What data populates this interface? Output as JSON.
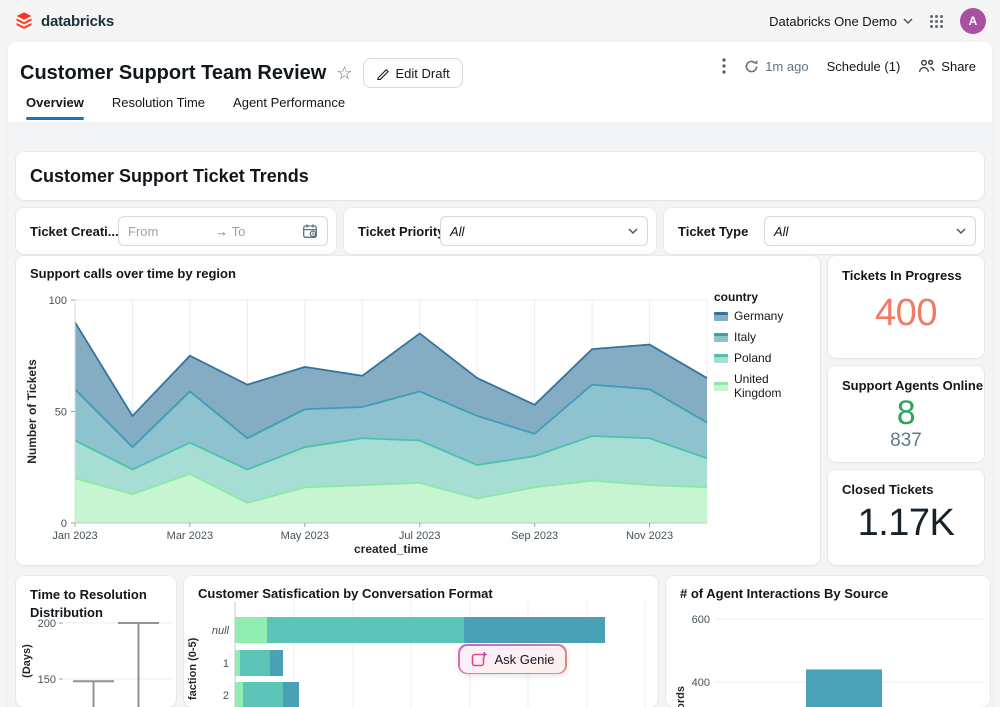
{
  "navbar": {
    "brand": "databricks",
    "workspace": "Databricks One Demo",
    "avatar": "A"
  },
  "header": {
    "title": "Customer Support Team Review",
    "edit": "Edit Draft",
    "refreshed": "1m ago",
    "schedule": "Schedule (1)",
    "share": "Share"
  },
  "tabs": [
    "Overview",
    "Resolution Time",
    "Agent Performance"
  ],
  "section_title": "Customer Support Ticket Trends",
  "filters": {
    "date_label": "Ticket Creati...",
    "from_placeholder": "From",
    "to_placeholder": "To",
    "priority_label": "Ticket Priority",
    "priority_value": "All",
    "type_label": "Ticket Type",
    "type_value": "All"
  },
  "kpis": [
    {
      "title": "Tickets In Progress",
      "value": "400",
      "value_color": "#EC7E63"
    },
    {
      "title": "Support Agents Online",
      "value": "8",
      "value_color": "#2FA45B",
      "secondary": "837",
      "secondary_color": "#5E7D8C"
    },
    {
      "title": "Closed Tickets",
      "value": "1.17K",
      "value_color": "#15222B"
    }
  ],
  "genie": {
    "label": "Ask Genie"
  },
  "accent_color": "#2272B4",
  "chart_data": [
    {
      "id": "support_calls",
      "type": "area",
      "title": "Support calls over time by region",
      "xlabel": "created_time",
      "ylabel": "Number of Tickets",
      "ylim": [
        0,
        100
      ],
      "yticks": [
        0,
        50,
        100
      ],
      "grid": true,
      "legend_title": "country",
      "legend_position": "right",
      "x": [
        "Jan 2023",
        "Feb 2023",
        "Mar 2023",
        "Apr 2023",
        "May 2023",
        "Jun 2023",
        "Jul 2023",
        "Aug 2023",
        "Sep 2023",
        "Oct 2023",
        "Nov 2023",
        "Dec 2023"
      ],
      "x_tick_shown": [
        "Jan 2023",
        "Mar 2023",
        "May 2023",
        "Jul 2023",
        "Sep 2023",
        "Nov 2023"
      ],
      "series": [
        {
          "name": "Germany",
          "line_color": "#33739E",
          "band_color": "#84ACC2",
          "values": [
            90,
            48,
            75,
            62,
            70,
            66,
            85,
            65,
            53,
            78,
            80,
            65
          ]
        },
        {
          "name": "Italy",
          "line_color": "#3C9DB8",
          "band_color": "#8FC2CF",
          "values": [
            60,
            34,
            59,
            38,
            51,
            52,
            59,
            48,
            40,
            62,
            60,
            45
          ]
        },
        {
          "name": "Poland",
          "line_color": "#4BC2AE",
          "band_color": "#A6DED4",
          "values": [
            37,
            24,
            36,
            24,
            34,
            38,
            37,
            26,
            30,
            39,
            38,
            29
          ]
        },
        {
          "name": "United Kingdom",
          "line_color": "#8BE8A5",
          "band_color": "#C8F5D1",
          "values": [
            20,
            13,
            22,
            9,
            16,
            17,
            18,
            11,
            16,
            19,
            17,
            16
          ]
        }
      ]
    },
    {
      "id": "resolution_box",
      "type": "boxplot",
      "title": "Time to Resolution Distribution",
      "ylabel": "(Days)",
      "yticks": [
        150,
        200
      ],
      "whiskers": [
        {
          "top": 148
        },
        {
          "top": 200
        }
      ]
    },
    {
      "id": "csat_by_format",
      "type": "bar",
      "orientation": "horizontal",
      "stacked": true,
      "title": "Customer Satisfication by Conversation Format",
      "ylabel": "faction (0-5)",
      "categories": [
        "null",
        "1",
        "2"
      ],
      "segment_colors": [
        "#90EEB2",
        "#5BC4B6",
        "#4AA0B5"
      ],
      "series": [
        {
          "values": [
            32,
            5,
            8
          ]
        },
        {
          "values": [
            197,
            30,
            40
          ]
        },
        {
          "values": [
            141,
            13,
            16
          ]
        }
      ]
    },
    {
      "id": "agent_interactions",
      "type": "bar",
      "title": "# of Agent Interactions By Source",
      "ylabel": "Records",
      "yticks": [
        400,
        600
      ],
      "values": [
        440
      ],
      "bar_color": "#4BA3B8"
    }
  ]
}
